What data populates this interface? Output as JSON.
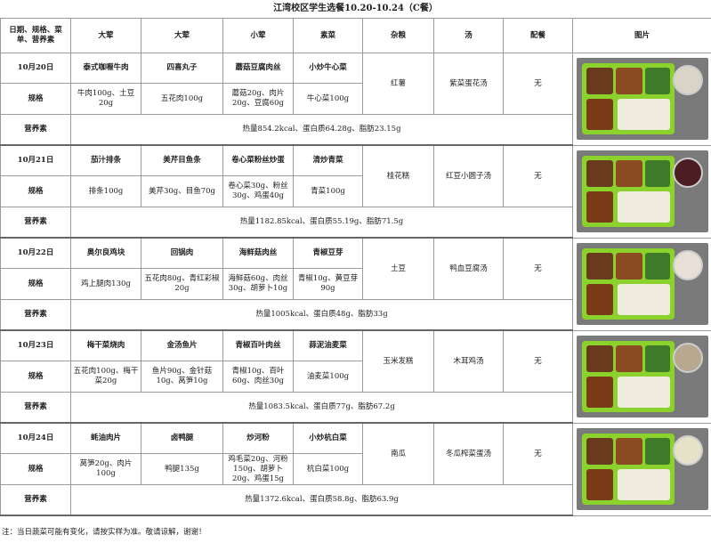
{
  "title": "江湾校区学生选餐10.20-10.24（C餐）",
  "headers": [
    "日期、规格、菜单、营养素",
    "大荤",
    "大荤",
    "小荤",
    "素菜",
    "杂粮",
    "汤",
    "配餐",
    "图片"
  ],
  "labels": {
    "spec": "规格",
    "nutrition": "营养素"
  },
  "days": [
    {
      "date": "10月20日",
      "dishes": [
        "泰式咖喱牛肉",
        "四喜丸子",
        "蘑菇豆腐肉丝",
        "小炒牛心菜"
      ],
      "specs": [
        "牛肉100g、土豆20g",
        "五花肉100g",
        "蘑菇20g、肉片20g、豆腐60g",
        "牛心菜100g"
      ],
      "grain": "红薯",
      "soup": "紫菜蛋花汤",
      "side": "无",
      "nutrition": "热量854.2kcal、蛋白质64.28g、脂肪23.15g",
      "bowl": "#d8d4c8"
    },
    {
      "date": "10月21日",
      "dishes": [
        "茄汁排条",
        "美芹目鱼条",
        "卷心菜粉丝炒蛋",
        "清炒青菜"
      ],
      "specs": [
        "排条100g",
        "美芹30g、目鱼70g",
        "卷心菜30g、粉丝30g、鸡蛋40g",
        "青菜100g"
      ],
      "grain": "桂花糕",
      "soup": "红豆小圆子汤",
      "side": "无",
      "nutrition": "热量1182.85kcal、蛋白质55.19g、脂肪71.5g",
      "bowl": "#4a1e22"
    },
    {
      "date": "10月22日",
      "dishes": [
        "奥尔良鸡块",
        "回锅肉",
        "海鲜菇肉丝",
        "青椒豆芽"
      ],
      "specs": [
        "鸡上腿肉130g",
        "五花肉80g、青红彩椒20g",
        "海鲜菇60g、肉丝30g、胡萝卜10g",
        "青椒10g、黄豆芽90g"
      ],
      "grain": "土豆",
      "soup": "鸭血豆腐汤",
      "side": "无",
      "nutrition": "热量1005kcal、蛋白质48g、脂肪33g",
      "bowl": "#e8e0d6"
    },
    {
      "date": "10月23日",
      "dishes": [
        "梅干菜烧肉",
        "金汤鱼片",
        "青椒百叶肉丝",
        "蒜泥油麦菜"
      ],
      "specs": [
        "五花肉100g、梅干菜20g",
        "鱼片90g、金针菇10g、莴笋10g",
        "青椒10g、百叶60g、肉丝30g",
        "油麦菜100g"
      ],
      "grain": "玉米发糕",
      "soup": "木耳鸡汤",
      "side": "无",
      "nutrition": "热量1083.5kcal、蛋白质77g、脂肪67.2g",
      "bowl": "#b8a890"
    },
    {
      "date": "10月24日",
      "dishes": [
        "蚝油肉片",
        "卤鸭腿",
        "炒河粉",
        "小炒杭白菜"
      ],
      "specs": [
        "莴笋20g、肉片100g",
        "鸭腿135g",
        "鸡毛菜20g、河粉150g、胡萝卜20g、鸡蛋15g",
        "杭白菜100g"
      ],
      "grain": "南瓜",
      "soup": "冬瓜榨菜蛋汤",
      "side": "无",
      "nutrition": "热量1372.6kcal、蛋白质58.8g、脂肪63.9g",
      "bowl": "#e6e2c8"
    }
  ],
  "note": "注：当日蔬菜可能有变化，请按实样为准。敬请谅解，谢谢！",
  "colors": {
    "tray": "#8cd22c",
    "border": "#9a9a9a"
  }
}
